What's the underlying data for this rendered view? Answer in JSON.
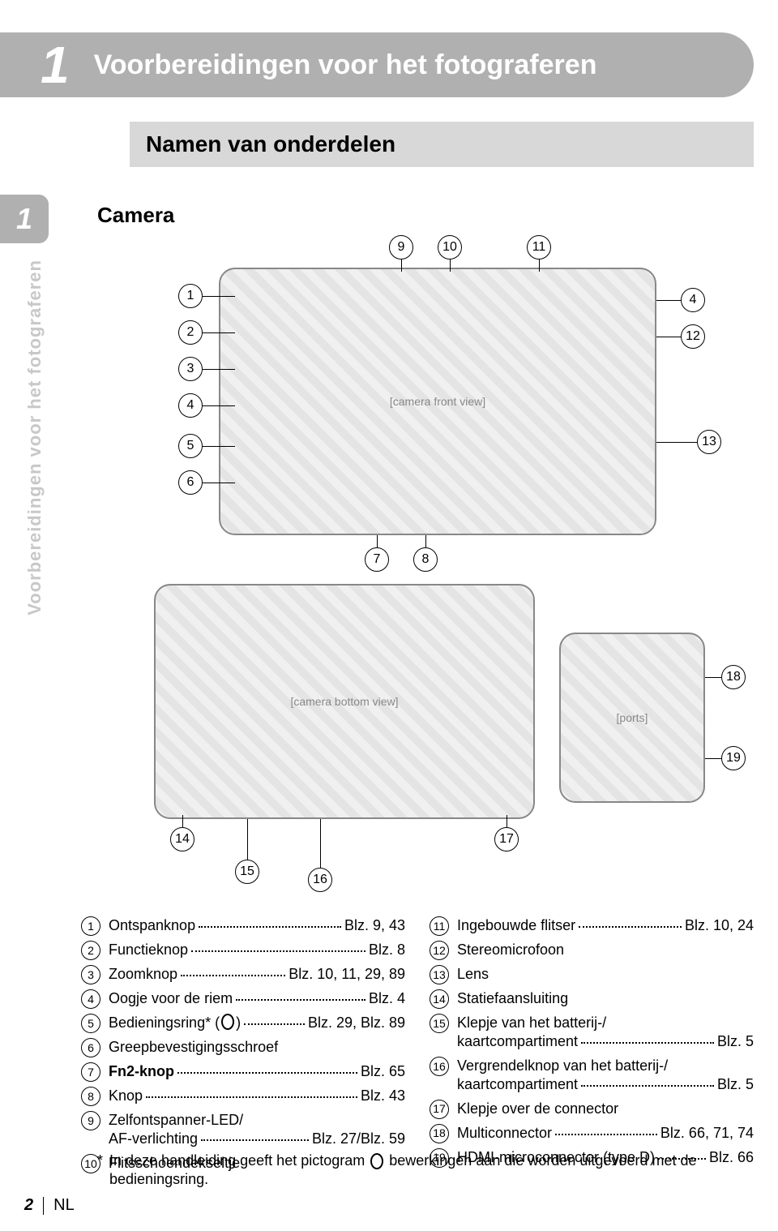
{
  "chapter": {
    "number": "1",
    "title": "Voorbereidingen voor het fotograferen"
  },
  "section_heading": "Namen van onderdelen",
  "side_tab": {
    "number": "1",
    "text": "Voorbereidingen voor het fotograferen"
  },
  "camera_heading": "Camera",
  "diagram": {
    "callouts_top": [
      "1",
      "2",
      "3",
      "4",
      "5",
      "6",
      "7",
      "8",
      "9",
      "10",
      "11",
      "12",
      "13"
    ],
    "callouts_bottom": [
      "14",
      "15",
      "16",
      "17",
      "18",
      "19"
    ]
  },
  "parts_left": [
    {
      "n": "1",
      "label": "Ontspanknop",
      "page": "Blz. 9, 43"
    },
    {
      "n": "2",
      "label": "Functieknop",
      "page": "Blz. 8"
    },
    {
      "n": "3",
      "label": "Zoomknop",
      "page": "Blz. 10, 11, 29, 89"
    },
    {
      "n": "4",
      "label": "Oogje voor de riem",
      "page": "Blz. 4"
    },
    {
      "n": "5",
      "label": "Bedieningsring* (",
      "suffix": ")",
      "page": "Blz. 29, Blz. 89",
      "ring": true
    },
    {
      "n": "6",
      "label": "Greepbevestigingsschroef",
      "page": ""
    },
    {
      "n": "7",
      "label": "Fn2-knop",
      "page": "Blz. 65",
      "bold": true
    },
    {
      "n": "8",
      "label": "Knop",
      "page": "Blz. 43"
    },
    {
      "n": "9",
      "label": "Zelfontspanner-LED/\nAF-verlichting",
      "page": "Blz. 27/Blz. 59"
    },
    {
      "n": "10",
      "label": "Flitsschoendekseltje",
      "page": ""
    }
  ],
  "parts_right": [
    {
      "n": "11",
      "label": "Ingebouwde flitser",
      "page": "Blz. 10, 24"
    },
    {
      "n": "12",
      "label": "Stereomicrofoon",
      "page": ""
    },
    {
      "n": "13",
      "label": "Lens",
      "page": ""
    },
    {
      "n": "14",
      "label": "Statiefaansluiting",
      "page": ""
    },
    {
      "n": "15",
      "label": "Klepje van het batterij-/\nkaartcompartiment",
      "page": "Blz. 5"
    },
    {
      "n": "16",
      "label": "Vergrendelknop van het batterij-/\nkaartcompartiment",
      "page": "Blz. 5"
    },
    {
      "n": "17",
      "label": "Klepje over de connector",
      "page": ""
    },
    {
      "n": "18",
      "label": "Multiconnector",
      "page": "Blz. 66, 71, 74"
    },
    {
      "n": "19",
      "label": "HDMI-microconnector (type D)",
      "page": "Blz. 66"
    }
  ],
  "footnote": {
    "marker": "*",
    "text_before": "In deze handleiding geeft het pictogram ",
    "text_after": " bewerkingen aan die worden uitgevoerd met de bedieningsring."
  },
  "footer": {
    "page": "2",
    "lang": "NL"
  }
}
